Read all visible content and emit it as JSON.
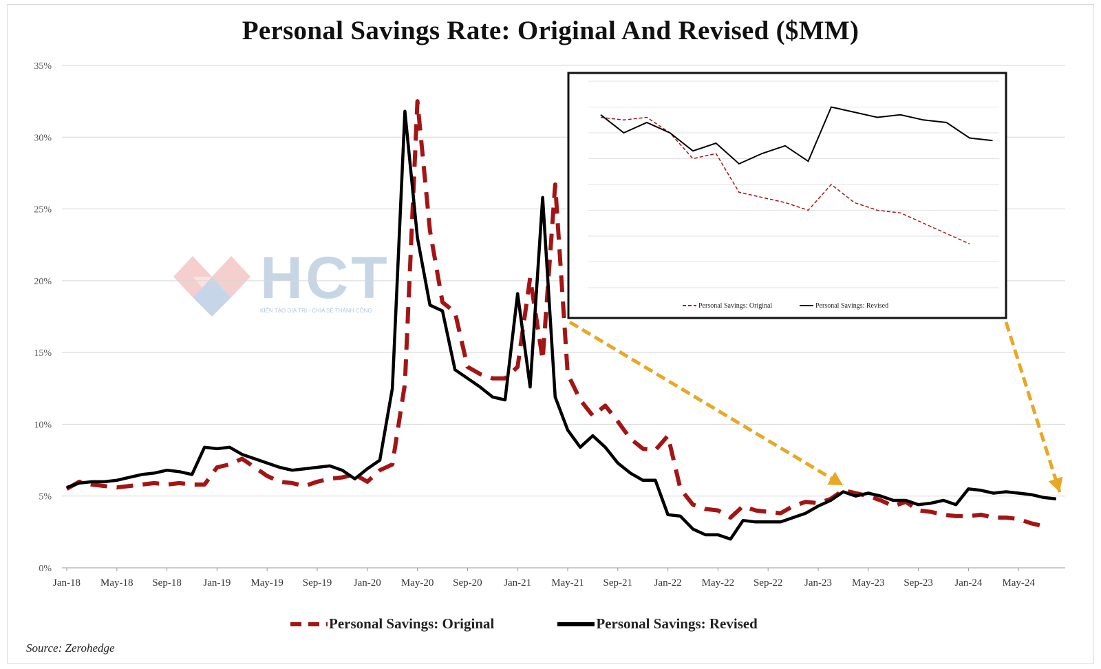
{
  "title": "Personal Savings Rate: Original And Revised ($MM)",
  "source": "Source: Zerohedge",
  "watermark": {
    "text": "HCT",
    "subtext": "KIẾN TẠO GIÁ TRỊ - CHIA SẺ THÀNH CÔNG"
  },
  "colors": {
    "original": "#a31515",
    "revised": "#000000",
    "arrow": "#e8a825",
    "grid": "#d6d6d6"
  },
  "legend": {
    "original": "Personal Savings: Original",
    "revised": "Personal Savings: Revised"
  },
  "chart_data": [
    {
      "type": "line",
      "title": "Personal Savings Rate: Original And Revised ($MM)",
      "ylim": [
        0,
        35
      ],
      "y_ticks": [
        "0%",
        "5%",
        "10%",
        "15%",
        "20%",
        "25%",
        "30%",
        "35%"
      ],
      "x_tick_labels": [
        "Jan-18",
        "May-18",
        "Sep-18",
        "Jan-19",
        "May-19",
        "Sep-19",
        "Jan-20",
        "May-20",
        "Sep-20",
        "Jan-21",
        "May-21",
        "Sep-21",
        "Jan-22",
        "May-22",
        "Sep-22",
        "Jan-23",
        "May-23",
        "Sep-23",
        "Jan-24",
        "May-24"
      ],
      "x_start": "Jan-18",
      "grid": true,
      "legend_position": "bottom",
      "series": [
        {
          "name": "Personal Savings: Original",
          "style": "dashed",
          "values": [
            5.5,
            6.0,
            5.8,
            5.7,
            5.6,
            5.7,
            5.8,
            5.9,
            5.8,
            5.9,
            5.8,
            5.8,
            7.0,
            7.2,
            7.6,
            7.0,
            6.4,
            6.0,
            5.9,
            5.7,
            6.0,
            6.2,
            6.3,
            6.5,
            6.0,
            6.8,
            7.2,
            12.8,
            32.5,
            23.5,
            18.5,
            17.8,
            14.0,
            13.5,
            13.2,
            13.2,
            14.0,
            20.2,
            14.5,
            26.7,
            13.5,
            11.7,
            10.6,
            11.3,
            10.2,
            9.0,
            8.3,
            8.2,
            9.2,
            5.5,
            4.4,
            4.1,
            4.0,
            3.5,
            4.3,
            4.0,
            3.9,
            3.8,
            4.3,
            4.6,
            4.5,
            4.8,
            5.4,
            5.2,
            5.0,
            4.7,
            4.3,
            4.6,
            4.0,
            3.9,
            3.7,
            3.6,
            3.6,
            3.7,
            3.5,
            3.5,
            3.4,
            3.1,
            2.9
          ]
        },
        {
          "name": "Personal Savings: Revised",
          "style": "solid",
          "values": [
            5.6,
            5.9,
            6.0,
            6.0,
            6.1,
            6.3,
            6.5,
            6.6,
            6.8,
            6.7,
            6.5,
            8.4,
            8.3,
            8.4,
            7.9,
            7.6,
            7.3,
            7.0,
            6.8,
            6.9,
            7.0,
            7.1,
            6.8,
            6.2,
            6.9,
            7.5,
            12.5,
            31.8,
            23.0,
            18.3,
            17.9,
            13.8,
            13.2,
            12.6,
            11.9,
            11.7,
            19.1,
            12.6,
            25.8,
            11.9,
            9.6,
            8.4,
            9.2,
            8.4,
            7.3,
            6.6,
            6.1,
            6.1,
            3.7,
            3.6,
            2.7,
            2.3,
            2.3,
            2.0,
            3.3,
            3.2,
            3.2,
            3.2,
            3.5,
            3.8,
            4.3,
            4.7,
            5.3,
            5.0,
            5.2,
            5.0,
            4.7,
            4.7,
            4.4,
            4.5,
            4.7,
            4.4,
            5.5,
            5.4,
            5.2,
            5.3,
            5.2,
            5.1,
            4.9,
            4.8
          ]
        }
      ]
    },
    {
      "type": "line",
      "title": "",
      "series": [
        {
          "name": "Personal Savings: Original",
          "style": "dashed",
          "values": [
            6.6,
            6.5,
            6.6,
            6.0,
            5.0,
            5.2,
            3.7,
            3.5,
            3.3,
            3.0,
            4.0,
            3.3,
            3.0,
            2.9,
            2.5,
            2.1,
            1.7
          ]
        },
        {
          "name": "Personal Savings: Revised",
          "style": "solid",
          "values": [
            6.7,
            6.0,
            6.4,
            6.0,
            5.3,
            5.6,
            4.8,
            5.2,
            5.5,
            4.9,
            7.0,
            6.8,
            6.6,
            6.7,
            6.5,
            6.4,
            5.8,
            5.7
          ]
        }
      ],
      "legend_position": "bottom",
      "legend": [
        "Personal Savings: Original",
        "Personal Savings: Revised"
      ]
    }
  ]
}
